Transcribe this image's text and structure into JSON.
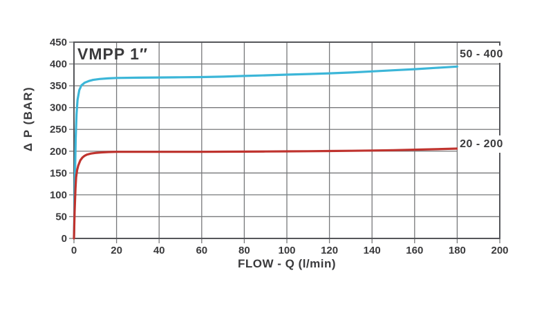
{
  "chart_data": {
    "type": "line",
    "title": "VMPP 1″",
    "xlabel": "FLOW - Q (l/min)",
    "ylabel": "Δ P (BAR)",
    "xlim": [
      0,
      200
    ],
    "ylim": [
      0,
      450
    ],
    "xticks": [
      0,
      20,
      40,
      60,
      80,
      100,
      120,
      140,
      160,
      180,
      200
    ],
    "yticks": [
      0,
      50,
      100,
      150,
      200,
      250,
      300,
      350,
      400,
      450
    ],
    "grid": true,
    "legend_position": "right-end-labels",
    "colors": {
      "grid": "#77787a",
      "border": "#55565a",
      "text": "#3a3a3c",
      "background": "#ffffff"
    },
    "series": [
      {
        "name": "50 - 400",
        "color": "#3cb6d8",
        "x": [
          0,
          0.4,
          0.8,
          1.2,
          1.7,
          2.5,
          3.5,
          5,
          7,
          9,
          12,
          16,
          20,
          30,
          40,
          50,
          60,
          70,
          80,
          90,
          100,
          110,
          120,
          130,
          140,
          150,
          160,
          170,
          180
        ],
        "y": [
          0,
          120,
          230,
          285,
          318,
          340,
          351,
          357,
          361,
          363.5,
          365.5,
          367,
          368,
          368.5,
          369,
          369.5,
          370,
          371,
          372.5,
          374,
          375.5,
          377,
          378.5,
          380.5,
          383,
          385.5,
          388,
          391,
          394
        ]
      },
      {
        "name": "20 - 200",
        "color": "#bf332e",
        "x": [
          0,
          0.3,
          0.7,
          1,
          1.5,
          2,
          3,
          4,
          5,
          6,
          8,
          10,
          13,
          16,
          20,
          30,
          40,
          50,
          60,
          70,
          80,
          90,
          100,
          110,
          120,
          130,
          140,
          150,
          160,
          170,
          180
        ],
        "y": [
          0,
          60,
          115,
          140,
          157,
          167,
          179,
          185.5,
          189.5,
          192,
          194.5,
          196,
          197.3,
          198,
          198.5,
          198.6,
          198.6,
          198.6,
          198.6,
          198.8,
          199,
          199.3,
          199.6,
          200,
          200.4,
          200.9,
          201.6,
          202.4,
          203.4,
          204.6,
          206
        ]
      }
    ]
  }
}
